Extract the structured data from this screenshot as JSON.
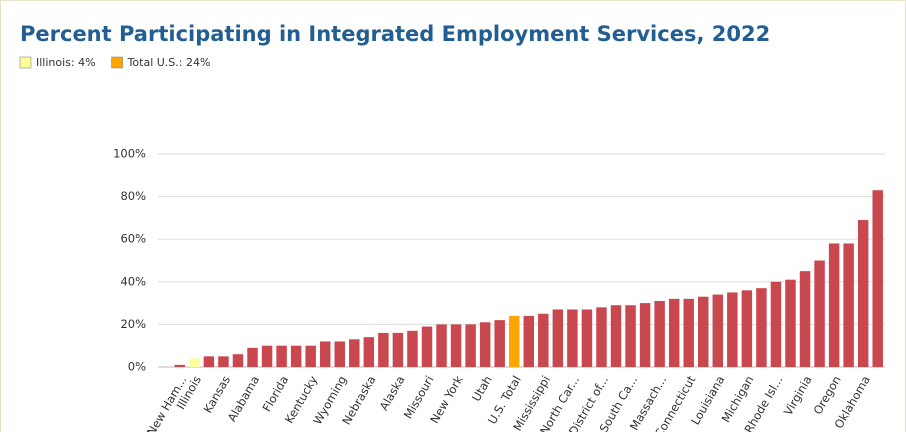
{
  "chart_data": {
    "type": "bar",
    "title": "Percent Participating in Integrated Employment Services, 2022",
    "legend": [
      {
        "label": "Illinois: 4%",
        "color": "#ffff99"
      },
      {
        "label": "Total U.S.: 24%",
        "color": "#ffa500"
      }
    ],
    "categories": [
      null,
      "New Ham...",
      "Illinois",
      null,
      "Kansas",
      null,
      "Alabama",
      null,
      "Florida",
      null,
      "Kentucky",
      null,
      "Wyoming",
      null,
      "Nebraska",
      null,
      "Alaska",
      null,
      "Missouri",
      null,
      "New York",
      null,
      "Utah",
      null,
      "U.S. Total",
      null,
      "Mississippi",
      null,
      "North Car...",
      null,
      "District of...",
      null,
      "South Ca...",
      null,
      "Massach...",
      null,
      "Connecticut",
      null,
      "Louisiana",
      null,
      "Michigan",
      null,
      "Rhode Isl...",
      null,
      "Virginia",
      null,
      "Oregon",
      null,
      "Oklahoma",
      null
    ],
    "values": [
      0,
      1,
      4,
      5,
      5,
      6,
      9,
      10,
      10,
      10,
      10,
      12,
      12,
      13,
      14,
      16,
      16,
      17,
      19,
      20,
      20,
      20,
      21,
      22,
      24,
      24,
      25,
      27,
      27,
      27,
      28,
      29,
      29,
      30,
      31,
      32,
      32,
      33,
      34,
      35,
      36,
      37,
      40,
      41,
      45,
      50,
      58,
      58,
      69,
      83
    ],
    "color": "#c9474f",
    "colors": [
      "#c9474f",
      "#c9474f",
      "#ffff99",
      "#c9474f",
      "#c9474f",
      "#c9474f",
      "#c9474f",
      "#c9474f",
      "#c9474f",
      "#c9474f",
      "#c9474f",
      "#c9474f",
      "#c9474f",
      "#c9474f",
      "#c9474f",
      "#c9474f",
      "#c9474f",
      "#c9474f",
      "#c9474f",
      "#c9474f",
      "#c9474f",
      "#c9474f",
      "#c9474f",
      "#c9474f",
      "#ffa500",
      "#c9474f",
      "#c9474f",
      "#c9474f",
      "#c9474f",
      "#c9474f",
      "#c9474f",
      "#c9474f",
      "#c9474f",
      "#c9474f",
      "#c9474f",
      "#c9474f",
      "#c9474f",
      "#c9474f",
      "#c9474f",
      "#c9474f",
      "#c9474f",
      "#c9474f",
      "#c9474f",
      "#c9474f",
      "#c9474f",
      "#c9474f",
      "#c9474f",
      "#c9474f",
      "#c9474f",
      "#c9474f"
    ],
    "ylim": [
      0,
      100
    ],
    "yticks": [
      {
        "value": 0,
        "label": "0%"
      },
      {
        "value": 20,
        "label": "20%"
      },
      {
        "value": 40,
        "label": "40%"
      },
      {
        "value": 60,
        "label": "60%"
      },
      {
        "value": 80,
        "label": "80%"
      },
      {
        "value": 100,
        "label": "100%"
      }
    ],
    "grid": true
  }
}
